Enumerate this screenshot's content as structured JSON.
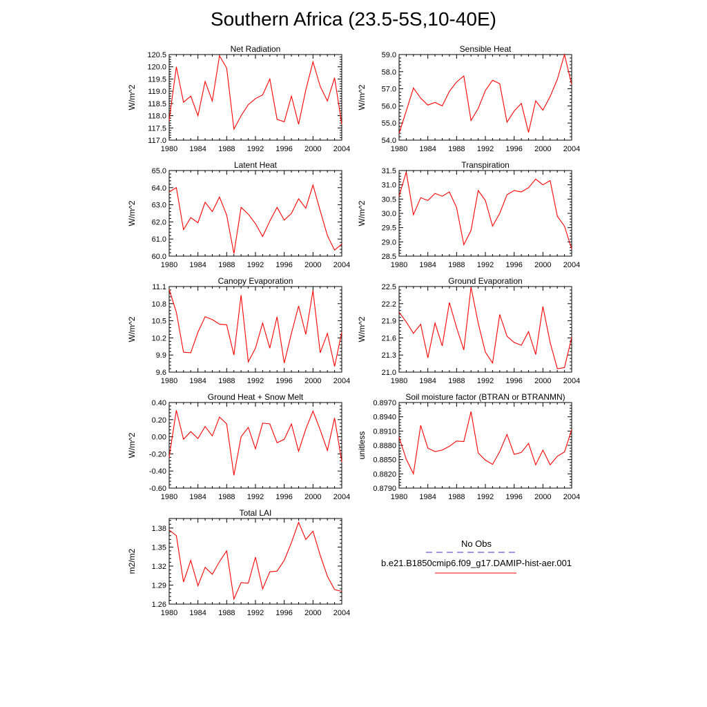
{
  "figure": {
    "title": "Southern Africa (23.5-5S,10-40E)"
  },
  "chart_data": [
    {
      "type": "line",
      "title": "Net Radiation",
      "ylabel": "W/m^2",
      "x": [
        1980,
        1981,
        1982,
        1983,
        1984,
        1985,
        1986,
        1987,
        1988,
        1989,
        1990,
        1991,
        1992,
        1993,
        1994,
        1995,
        1996,
        1997,
        1998,
        1999,
        2000,
        2001,
        2002,
        2003,
        2004
      ],
      "values": [
        117.8,
        120.0,
        118.55,
        118.8,
        118.0,
        119.4,
        118.6,
        120.45,
        119.95,
        117.45,
        118.0,
        118.45,
        118.7,
        118.85,
        119.5,
        117.85,
        117.75,
        118.8,
        117.65,
        119.05,
        120.2,
        119.2,
        118.6,
        119.55,
        117.65
      ],
      "xlim": [
        1980,
        2004
      ],
      "ylim": [
        117.0,
        120.5
      ],
      "xticks": [
        "1980",
        "1984",
        "1988",
        "1992",
        "1996",
        "2000",
        "2004"
      ],
      "yticks": [
        "117.0",
        "117.5",
        "118.0",
        "118.5",
        "119.0",
        "119.5",
        "120.0",
        "120.5"
      ],
      "series_color": "#ff0000"
    },
    {
      "type": "line",
      "title": "Sensible Heat",
      "ylabel": "W/m^2",
      "x": [
        1980,
        1981,
        1982,
        1983,
        1984,
        1985,
        1986,
        1987,
        1988,
        1989,
        1990,
        1991,
        1992,
        1993,
        1994,
        1995,
        1996,
        1997,
        1998,
        1999,
        2000,
        2001,
        2002,
        2003,
        2004
      ],
      "values": [
        54.4,
        55.7,
        57.05,
        56.45,
        56.05,
        56.2,
        56.0,
        56.85,
        57.4,
        57.75,
        55.15,
        55.85,
        56.9,
        57.5,
        57.3,
        55.05,
        55.7,
        56.15,
        54.45,
        56.3,
        55.75,
        56.55,
        57.55,
        59.0,
        57.25
      ],
      "xlim": [
        1980,
        2004
      ],
      "ylim": [
        54.0,
        59.0
      ],
      "xticks": [
        "1980",
        "1984",
        "1988",
        "1992",
        "1996",
        "2000",
        "2004"
      ],
      "yticks": [
        "54.0",
        "55.0",
        "56.0",
        "57.0",
        "58.0",
        "59.0"
      ],
      "series_color": "#ff0000"
    },
    {
      "type": "line",
      "title": "Latent Heat",
      "ylabel": "W/m^2",
      "x": [
        1980,
        1981,
        1982,
        1983,
        1984,
        1985,
        1986,
        1987,
        1988,
        1989,
        1990,
        1991,
        1992,
        1993,
        1994,
        1995,
        1996,
        1997,
        1998,
        1999,
        2000,
        2001,
        2002,
        2003,
        2004
      ],
      "values": [
        63.75,
        64.0,
        61.55,
        62.25,
        61.95,
        63.15,
        62.6,
        63.45,
        62.4,
        60.15,
        62.85,
        62.45,
        61.9,
        61.15,
        62.05,
        62.85,
        62.1,
        62.5,
        63.35,
        62.8,
        64.15,
        62.65,
        61.2,
        60.35,
        60.7
      ],
      "xlim": [
        1980,
        2004
      ],
      "ylim": [
        60.0,
        65.0
      ],
      "xticks": [
        "1980",
        "1984",
        "1988",
        "1992",
        "1996",
        "2000",
        "2004"
      ],
      "yticks": [
        "60.0",
        "61.0",
        "62.0",
        "63.0",
        "64.0",
        "65.0"
      ],
      "series_color": "#ff0000"
    },
    {
      "type": "line",
      "title": "Transpiration",
      "ylabel": "W/m^2",
      "x": [
        1980,
        1981,
        1982,
        1983,
        1984,
        1985,
        1986,
        1987,
        1988,
        1989,
        1990,
        1991,
        1992,
        1993,
        1994,
        1995,
        1996,
        1997,
        1998,
        1999,
        2000,
        2001,
        2002,
        2003,
        2004
      ],
      "values": [
        30.6,
        31.45,
        29.95,
        30.55,
        30.45,
        30.7,
        30.6,
        30.75,
        30.2,
        28.9,
        29.4,
        30.8,
        30.45,
        29.55,
        30.0,
        30.65,
        30.8,
        30.75,
        30.9,
        31.2,
        31.0,
        31.15,
        29.9,
        29.55,
        28.75
      ],
      "xlim": [
        1980,
        2004
      ],
      "ylim": [
        28.5,
        31.5
      ],
      "xticks": [
        "1980",
        "1984",
        "1988",
        "1992",
        "1996",
        "2000",
        "2004"
      ],
      "yticks": [
        "28.5",
        "29.0",
        "29.5",
        "30.0",
        "30.5",
        "31.0",
        "31.5"
      ],
      "series_color": "#ff0000"
    },
    {
      "type": "line",
      "title": "Canopy Evaporation",
      "ylabel": "W/m^2",
      "x": [
        1980,
        1981,
        1982,
        1983,
        1984,
        1985,
        1986,
        1987,
        1988,
        1989,
        1990,
        1991,
        1992,
        1993,
        1994,
        1995,
        1996,
        1997,
        1998,
        1999,
        2000,
        2001,
        2002,
        2003,
        2004
      ],
      "values": [
        11.05,
        10.65,
        9.95,
        9.94,
        10.3,
        10.57,
        10.52,
        10.44,
        10.43,
        9.9,
        10.95,
        9.78,
        10.02,
        10.46,
        10.02,
        10.57,
        9.76,
        10.28,
        10.76,
        10.26,
        11.03,
        9.94,
        10.28,
        9.7,
        10.3
      ],
      "xlim": [
        1980,
        2004
      ],
      "ylim": [
        9.6,
        11.1
      ],
      "xticks": [
        "1980",
        "1984",
        "1988",
        "1992",
        "1996",
        "2000",
        "2004"
      ],
      "yticks": [
        "9.6",
        "9.9",
        "10.2",
        "10.5",
        "10.8",
        "11.1"
      ],
      "series_color": "#ff0000"
    },
    {
      "type": "line",
      "title": "Ground Evaporation",
      "ylabel": "W/m^2",
      "x": [
        1980,
        1981,
        1982,
        1983,
        1984,
        1985,
        1986,
        1987,
        1988,
        1989,
        1990,
        1991,
        1992,
        1993,
        1994,
        1995,
        1996,
        1997,
        1998,
        1999,
        2000,
        2001,
        2002,
        2003,
        2004
      ],
      "values": [
        22.05,
        21.88,
        21.68,
        21.84,
        21.25,
        21.86,
        21.46,
        22.22,
        21.78,
        21.39,
        22.49,
        21.86,
        21.35,
        21.16,
        22.01,
        21.63,
        21.52,
        21.47,
        21.71,
        21.31,
        22.15,
        21.52,
        21.06,
        21.08,
        21.61
      ],
      "xlim": [
        1980,
        2004
      ],
      "ylim": [
        21.0,
        22.5
      ],
      "xticks": [
        "1980",
        "1984",
        "1988",
        "1992",
        "1996",
        "2000",
        "2004"
      ],
      "yticks": [
        "21.0",
        "21.3",
        "21.6",
        "21.9",
        "22.2",
        "22.5"
      ],
      "series_color": "#ff0000"
    },
    {
      "type": "line",
      "title": "Ground Heat + Snow Melt",
      "ylabel": "W/m^2",
      "x": [
        1980,
        1981,
        1982,
        1983,
        1984,
        1985,
        1986,
        1987,
        1988,
        1989,
        1990,
        1991,
        1992,
        1993,
        1994,
        1995,
        1996,
        1997,
        1998,
        1999,
        2000,
        2001,
        2002,
        2003,
        2004
      ],
      "values": [
        -0.24,
        0.31,
        -0.03,
        0.06,
        -0.02,
        0.12,
        0.01,
        0.23,
        0.15,
        -0.45,
        0.0,
        0.11,
        -0.14,
        0.16,
        0.15,
        -0.07,
        -0.03,
        0.15,
        -0.17,
        0.09,
        0.3,
        0.08,
        -0.16,
        0.22,
        -0.29
      ],
      "xlim": [
        1980,
        2004
      ],
      "ylim": [
        -0.6,
        0.4
      ],
      "xticks": [
        "1980",
        "1984",
        "1988",
        "1992",
        "1996",
        "2000",
        "2004"
      ],
      "yticks": [
        "-0.60",
        "-0.40",
        "-0.20",
        "0.00",
        "0.20",
        "0.40"
      ],
      "series_color": "#ff0000"
    },
    {
      "type": "line",
      "title": "Soil moisture factor (BTRAN or BTRANMN)",
      "ylabel": "unitless",
      "x": [
        1980,
        1981,
        1982,
        1983,
        1984,
        1985,
        1986,
        1987,
        1988,
        1989,
        1990,
        1991,
        1992,
        1993,
        1994,
        1995,
        1996,
        1997,
        1998,
        1999,
        2000,
        2001,
        2002,
        2003,
        2004
      ],
      "values": [
        0.8897,
        0.8851,
        0.882,
        0.8922,
        0.8874,
        0.8867,
        0.887,
        0.8878,
        0.8889,
        0.8888,
        0.8951,
        0.8864,
        0.8849,
        0.884,
        0.8867,
        0.8903,
        0.8861,
        0.8865,
        0.8884,
        0.8839,
        0.887,
        0.8839,
        0.8857,
        0.8866,
        0.8913
      ],
      "xlim": [
        1980,
        2004
      ],
      "ylim": [
        0.879,
        0.897
      ],
      "xticks": [
        "1980",
        "1984",
        "1988",
        "1992",
        "1996",
        "2000",
        "2004"
      ],
      "yticks": [
        "0.8790",
        "0.8820",
        "0.8850",
        "0.8880",
        "0.8910",
        "0.8940",
        "0.8970"
      ],
      "series_color": "#ff0000"
    },
    {
      "type": "line",
      "title": "Total LAI",
      "ylabel": "m2/m2",
      "x": [
        1980,
        1981,
        1982,
        1983,
        1984,
        1985,
        1986,
        1987,
        1988,
        1989,
        1990,
        1991,
        1992,
        1993,
        1994,
        1995,
        1996,
        1997,
        1998,
        1999,
        2000,
        2001,
        2002,
        2003,
        2004
      ],
      "values": [
        1.377,
        1.368,
        1.295,
        1.329,
        1.289,
        1.318,
        1.307,
        1.327,
        1.344,
        1.268,
        1.294,
        1.293,
        1.334,
        1.284,
        1.311,
        1.312,
        1.329,
        1.357,
        1.389,
        1.362,
        1.375,
        1.337,
        1.304,
        1.283,
        1.28
      ],
      "xlim": [
        1980,
        2004
      ],
      "ylim": [
        1.26,
        1.395
      ],
      "xticks": [
        "1980",
        "1984",
        "1988",
        "1992",
        "1996",
        "2000",
        "2004"
      ],
      "yticks": [
        "1.26",
        "1.29",
        "1.32",
        "1.35",
        "1.38"
      ],
      "series_color": "#ff0000"
    }
  ],
  "legend": {
    "entries": [
      {
        "label": "No Obs",
        "color": "#3333cc",
        "style": "dashed"
      },
      {
        "label": "b.e21.B1850cmip6.f09_g17.DAMIP-hist-aer.001",
        "color": "#ff0000",
        "style": "solid"
      }
    ]
  }
}
